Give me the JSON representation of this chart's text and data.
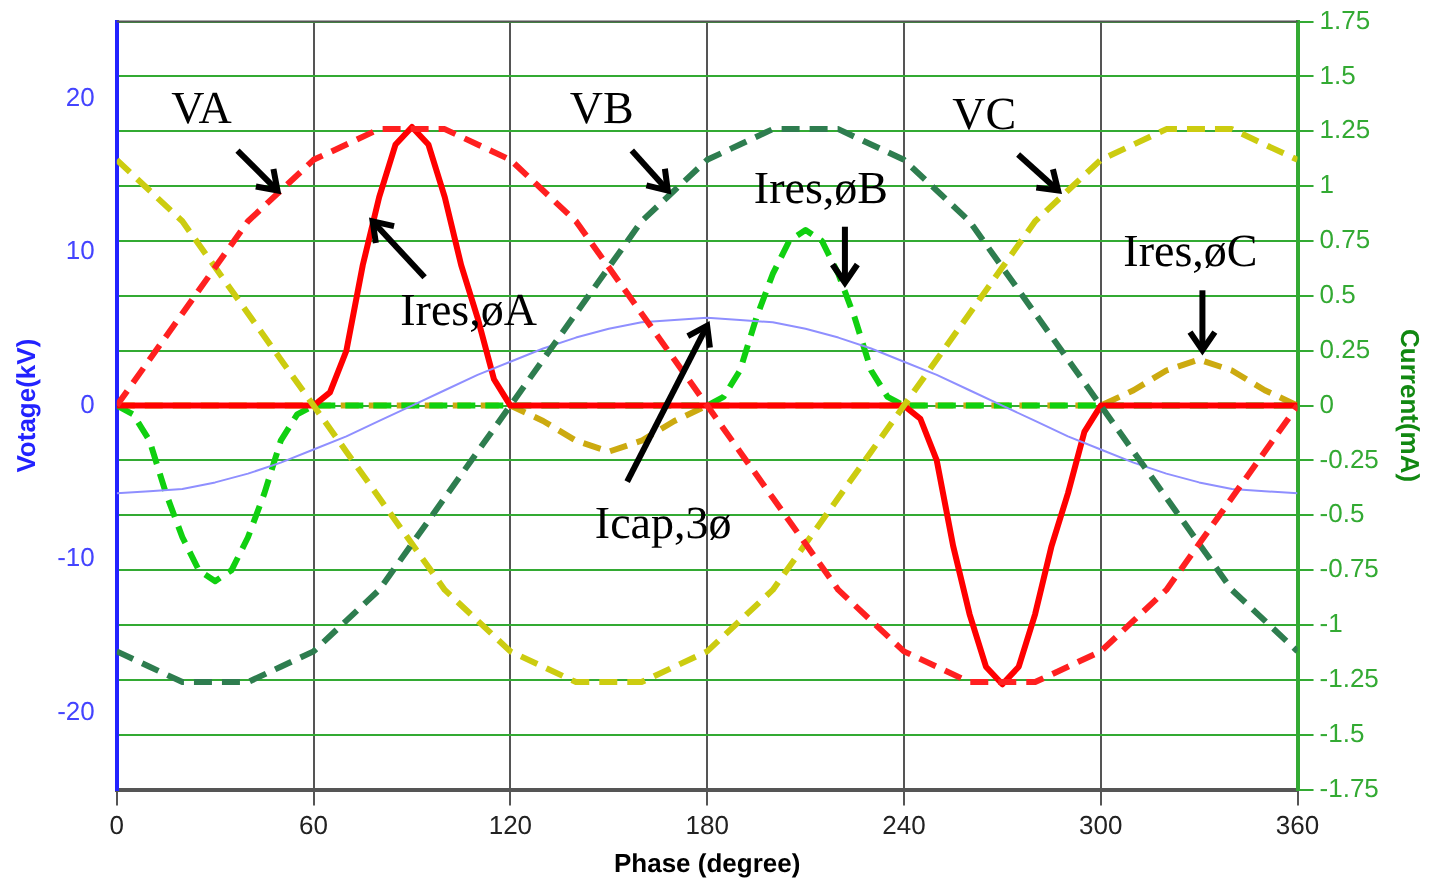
{
  "chart_data": {
    "type": "line",
    "xlabel": "Phase (degree)",
    "ylabel": "Votage(kV)",
    "y2label": "Current(mA)",
    "x": [
      0,
      10,
      20,
      30,
      40,
      50,
      60,
      70,
      80,
      90,
      100,
      110,
      120,
      130,
      140,
      150,
      160,
      170,
      180,
      190,
      200,
      210,
      220,
      230,
      240,
      250,
      260,
      270,
      280,
      290,
      300,
      310,
      320,
      330,
      340,
      350,
      360
    ],
    "xlim": [
      0,
      360
    ],
    "xticks": [
      0,
      60,
      120,
      180,
      240,
      300,
      360
    ],
    "ylim": [
      -25,
      25
    ],
    "yticks": [
      -20,
      -10,
      0,
      10,
      20
    ],
    "y2lim": [
      -1.75,
      1.75
    ],
    "y2ticks": [
      -1.75,
      -1.5,
      -1.25,
      -1,
      -0.75,
      -0.5,
      -0.25,
      0,
      0.25,
      0.5,
      0.75,
      1,
      1.25,
      1.5,
      1.75
    ],
    "grid": true,
    "legend": false,
    "marker": "none",
    "series": [
      {
        "color": "#ff2020",
        "line_style": "dashed",
        "values": [
          0,
          3,
          6,
          9,
          12,
          14,
          16,
          17,
          18,
          18,
          18,
          17,
          16,
          14,
          12,
          9,
          6,
          3,
          0,
          -3,
          -6,
          -9,
          -12,
          -14,
          -16,
          -17,
          -18,
          -18,
          -18,
          -17,
          -16,
          -14,
          -12,
          -9,
          -6,
          -3,
          0
        ]
      },
      {
        "color": "#2e7d4f",
        "line_style": "dashed",
        "values": [
          -16,
          -17,
          -18,
          -18,
          -18,
          -17,
          -16,
          -14,
          -12,
          -9,
          -6,
          -3,
          0,
          3,
          6,
          9,
          12,
          14,
          16,
          17,
          18,
          18,
          18,
          17,
          16,
          14,
          12,
          9,
          6,
          3,
          0,
          -3,
          -6,
          -9,
          -12,
          -14,
          -16
        ]
      },
      {
        "color": "#cccc10",
        "line_style": "dashed",
        "values": [
          16,
          14,
          12,
          9,
          6,
          3,
          0,
          -3,
          -6,
          -9,
          -12,
          -14,
          -16,
          -17,
          -18,
          -18,
          -18,
          -17,
          -16,
          -14,
          -12,
          -9,
          -6,
          -3,
          0,
          3,
          6,
          9,
          12,
          14,
          16,
          17,
          18,
          18,
          18,
          17,
          16
        ]
      },
      {
        "color": "#8f8fff",
        "line_style": "solid",
        "axis": "y2",
        "values": [
          -0.4,
          -0.39,
          -0.38,
          -0.35,
          -0.31,
          -0.26,
          -0.2,
          -0.14,
          -0.07,
          0,
          0.07,
          0.14,
          0.2,
          0.26,
          0.31,
          0.35,
          0.38,
          0.39,
          0.4,
          0.39,
          0.38,
          0.35,
          0.31,
          0.26,
          0.2,
          0.14,
          0.07,
          0,
          -0.07,
          -0.14,
          -0.2,
          -0.26,
          -0.31,
          -0.35,
          -0.38,
          -0.39,
          -0.4
        ]
      },
      {
        "color": "#ff0000",
        "line_style": "solid",
        "axis": "y2",
        "x": [
          0,
          60,
          65,
          70,
          75,
          80,
          85,
          90,
          95,
          100,
          105,
          110,
          115,
          120,
          240,
          245,
          250,
          255,
          260,
          265,
          270,
          275,
          280,
          285,
          290,
          295,
          300,
          360
        ],
        "values": [
          0,
          0,
          0.06,
          0.25,
          0.64,
          0.95,
          1.19,
          1.27,
          1.19,
          0.95,
          0.64,
          0.4,
          0.12,
          0,
          0,
          -0.06,
          -0.25,
          -0.64,
          -0.95,
          -1.19,
          -1.27,
          -1.19,
          -0.95,
          -0.64,
          -0.4,
          -0.12,
          0,
          0
        ]
      },
      {
        "color": "#10d010",
        "line_style": "dashed",
        "axis": "y2",
        "x": [
          0,
          5,
          10,
          15,
          20,
          25,
          30,
          35,
          40,
          45,
          50,
          55,
          60,
          180,
          185,
          190,
          195,
          200,
          205,
          210,
          215,
          220,
          225,
          230,
          235,
          240,
          360
        ],
        "values": [
          0,
          -0.04,
          -0.16,
          -0.4,
          -0.6,
          -0.75,
          -0.8,
          -0.75,
          -0.6,
          -0.4,
          -0.16,
          -0.04,
          0,
          0,
          0.04,
          0.16,
          0.4,
          0.6,
          0.75,
          0.8,
          0.75,
          0.6,
          0.4,
          0.16,
          0.04,
          0,
          0
        ]
      },
      {
        "color": "#ccaa10",
        "line_style": "dashed",
        "axis": "y2",
        "x": [
          0,
          120,
          130,
          140,
          150,
          160,
          170,
          180,
          300,
          310,
          320,
          330,
          340,
          350,
          360
        ],
        "values": [
          0,
          0,
          -0.07,
          -0.16,
          -0.21,
          -0.16,
          -0.07,
          0,
          0,
          0.07,
          0.16,
          0.21,
          0.16,
          0.07,
          0
        ]
      }
    ],
    "annotations": [
      {
        "text": "VA",
        "x": 49,
        "y": 14
      },
      {
        "text": "VB",
        "x": 168,
        "y": 14
      },
      {
        "text": "VC",
        "x": 287,
        "y": 14
      },
      {
        "text": "Ires,øA",
        "x": 78,
        "y": 12
      },
      {
        "text": "Ires,øB",
        "x": 222,
        "y": 8
      },
      {
        "text": "Ires,øC",
        "x": 331,
        "y": 3.6
      },
      {
        "text": "Icap,3ø",
        "x": 180,
        "y": 5.2
      }
    ]
  }
}
